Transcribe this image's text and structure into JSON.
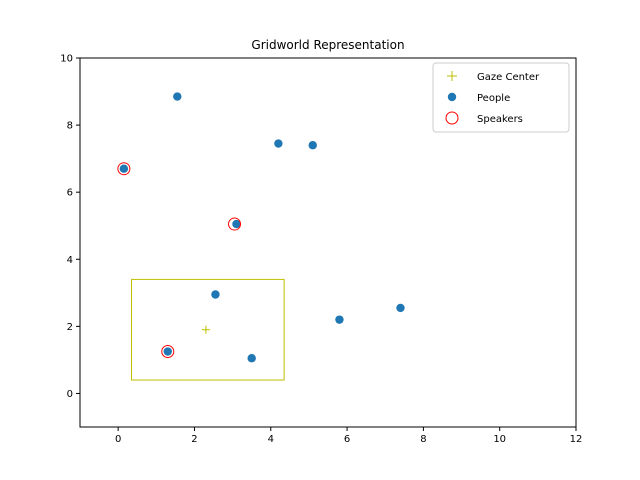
{
  "chart_data": {
    "type": "scatter",
    "title": "Gridworld Representation",
    "xlabel": "",
    "ylabel": "",
    "xlim": [
      -1,
      12
    ],
    "ylim": [
      -1,
      10
    ],
    "xticks": [
      0,
      2,
      4,
      6,
      8,
      10,
      12
    ],
    "yticks": [
      0,
      2,
      4,
      6,
      8,
      10
    ],
    "grid": false,
    "legend_position": "top-right",
    "series": [
      {
        "name": "Gaze Center",
        "marker": "plus",
        "color": "#bfbf00",
        "points": [
          [
            2.3,
            1.9
          ]
        ]
      },
      {
        "name": "People",
        "marker": "circle",
        "color": "#1f77b4",
        "points": [
          [
            1.55,
            8.85
          ],
          [
            4.2,
            7.45
          ],
          [
            5.1,
            7.4
          ],
          [
            0.15,
            6.7
          ],
          [
            3.1,
            5.05
          ],
          [
            2.55,
            2.95
          ],
          [
            7.4,
            2.55
          ],
          [
            5.8,
            2.2
          ],
          [
            1.3,
            1.25
          ],
          [
            3.5,
            1.05
          ]
        ]
      },
      {
        "name": "Speakers",
        "marker": "open-circle",
        "color": "#ff0000",
        "points": [
          [
            0.15,
            6.7
          ],
          [
            3.05,
            5.05
          ],
          [
            1.3,
            1.25
          ]
        ]
      }
    ],
    "gaze_box": {
      "x": [
        0.35,
        4.35
      ],
      "y": [
        0.4,
        3.4
      ],
      "color": "#bfbf00"
    }
  }
}
